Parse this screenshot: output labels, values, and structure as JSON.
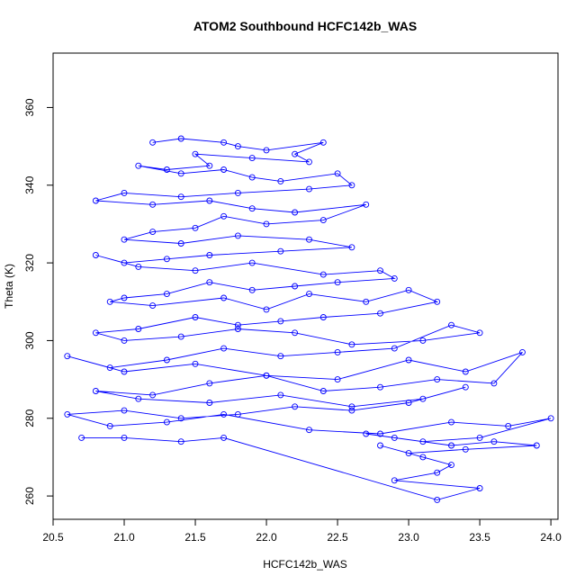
{
  "chart_data": {
    "type": "line",
    "title": "ATOM2 Southbound HCFC142b_WAS",
    "xlabel": "HCFC142b_WAS",
    "ylabel": "Theta (K)",
    "xlim": [
      20.5,
      24.05
    ],
    "ylim": [
      254,
      374
    ],
    "xticks": [
      "20.5",
      "21.0",
      "21.5",
      "22.0",
      "22.5",
      "23.0",
      "23.5",
      "24.0"
    ],
    "yticks": [
      "260",
      "280",
      "300",
      "320",
      "340",
      "360"
    ],
    "colors": {
      "series": "#0000ff",
      "axis": "#000000"
    },
    "series": [
      {
        "marker": "open-circle",
        "x": [
          21.2,
          21.4,
          21.7,
          21.8,
          22.0,
          22.4,
          22.2,
          22.3,
          21.9,
          21.5,
          21.6,
          21.3,
          21.1,
          21.4,
          21.7,
          21.9,
          22.1,
          22.5,
          22.6,
          22.3,
          21.8,
          21.4,
          21.0,
          20.8,
          21.2,
          21.6,
          21.9,
          22.2,
          22.7,
          22.4,
          22.0,
          21.7,
          21.5,
          21.2,
          21.0,
          21.4,
          21.8,
          22.3,
          22.6,
          22.1,
          21.6,
          21.3,
          21.0,
          20.8,
          21.1,
          21.5,
          21.9,
          22.4,
          22.8,
          22.9,
          22.5,
          22.2,
          21.9,
          21.6,
          21.3,
          21.0,
          20.9,
          21.2,
          21.7,
          22.0,
          22.3,
          22.7,
          23.0,
          23.2,
          22.8,
          22.4,
          22.1,
          21.8,
          21.5,
          21.1,
          20.8,
          21.0,
          21.4,
          21.8,
          22.2,
          22.6,
          23.1,
          23.5,
          23.3,
          22.9,
          22.5,
          22.1,
          21.7,
          21.3,
          20.9,
          20.6,
          21.0,
          21.5,
          22.0,
          22.5,
          23.0,
          23.4,
          23.8,
          23.6,
          23.2,
          22.8,
          22.4,
          22.0,
          21.6,
          21.2,
          20.8,
          21.1,
          21.6,
          22.1,
          22.6,
          23.1,
          23.4,
          23.0,
          22.6,
          22.2,
          21.8,
          21.4,
          21.0,
          20.6,
          20.9,
          21.3,
          21.7,
          22.3,
          22.8,
          23.3,
          23.7,
          24.0,
          23.5,
          23.1,
          22.7,
          22.9,
          23.3,
          23.6,
          23.9,
          23.4,
          23.0,
          22.8,
          23.1,
          23.3,
          23.2,
          22.9,
          23.5,
          23.2,
          21.7,
          21.4,
          21.0,
          20.7
        ],
        "y": [
          351,
          352,
          351,
          350,
          349,
          351,
          348,
          346,
          347,
          348,
          345,
          344,
          345,
          343,
          344,
          342,
          341,
          343,
          340,
          339,
          338,
          337,
          338,
          336,
          335,
          336,
          334,
          333,
          335,
          331,
          330,
          332,
          329,
          328,
          326,
          325,
          327,
          326,
          324,
          323,
          322,
          321,
          320,
          322,
          319,
          318,
          320,
          317,
          318,
          316,
          315,
          314,
          313,
          315,
          312,
          311,
          310,
          309,
          311,
          308,
          312,
          310,
          313,
          310,
          307,
          306,
          305,
          304,
          306,
          303,
          302,
          300,
          301,
          303,
          302,
          299,
          300,
          302,
          304,
          298,
          297,
          296,
          298,
          295,
          293,
          296,
          292,
          294,
          291,
          290,
          295,
          292,
          297,
          289,
          290,
          288,
          287,
          291,
          289,
          286,
          287,
          285,
          284,
          286,
          283,
          285,
          288,
          284,
          282,
          283,
          281,
          280,
          282,
          281,
          278,
          279,
          281,
          277,
          276,
          279,
          278,
          280,
          275,
          274,
          276,
          275,
          273,
          274,
          273,
          272,
          271,
          273,
          270,
          268,
          266,
          264,
          262,
          259,
          275,
          274,
          275,
          275
        ]
      }
    ]
  }
}
